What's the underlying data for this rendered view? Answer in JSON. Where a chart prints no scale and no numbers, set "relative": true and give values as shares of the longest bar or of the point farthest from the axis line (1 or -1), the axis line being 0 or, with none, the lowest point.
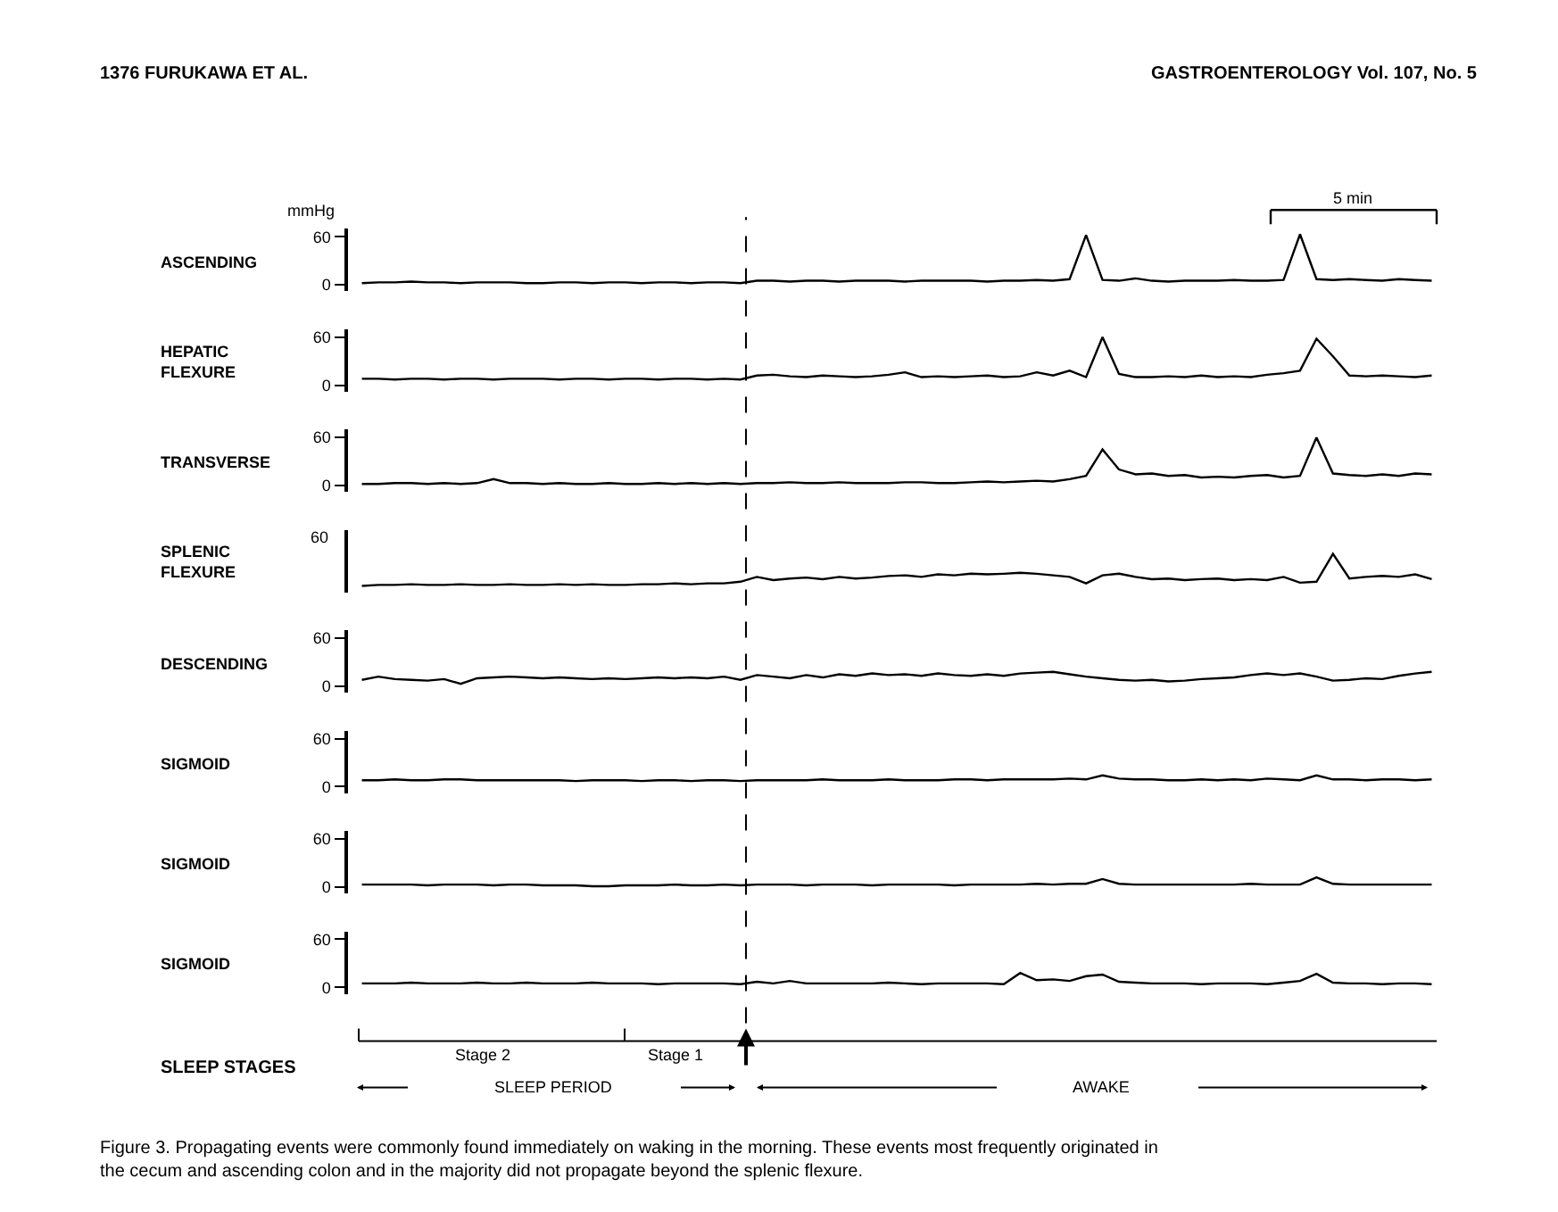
{
  "chart_data": [
    {
      "type": "line",
      "ylabel": "ASCENDING",
      "annotations": [
        "1376 FURUKAWA ET AL.",
        "GASTROENTEROLOGY Vol. 107, No. 5",
        "mmHg",
        "5 min"
      ],
      "ylim": [
        -8,
        70
      ],
      "yticks": [
        0,
        60
      ],
      "tick_labels": "y",
      "line_style": "solid",
      "categories": [
        null,
        null,
        null,
        null,
        null,
        null,
        null,
        null,
        null,
        null,
        null,
        null,
        null,
        null,
        null,
        null,
        null,
        null,
        null,
        null,
        null,
        null,
        null,
        null,
        null,
        null,
        null,
        null,
        null,
        null,
        null,
        null,
        null,
        null,
        null,
        null,
        null,
        null,
        null,
        null,
        null,
        null,
        null,
        null,
        null,
        null,
        null,
        null,
        null,
        null,
        null,
        null,
        null,
        null,
        null,
        null,
        null,
        null,
        null,
        null,
        null,
        null,
        null,
        null,
        null,
        null
      ],
      "series": [
        {
          "color": "#000000",
          "values": [
            2,
            3,
            3,
            4,
            3,
            3,
            2,
            3,
            3,
            3,
            2,
            2,
            3,
            3,
            2,
            3,
            3,
            2,
            3,
            3,
            2,
            3,
            3,
            2,
            5,
            5,
            4,
            5,
            5,
            4,
            5,
            5,
            5,
            4,
            5,
            5,
            5,
            5,
            4,
            5,
            5,
            6,
            5,
            7,
            62,
            6,
            5,
            8,
            5,
            4,
            5,
            5,
            5,
            6,
            5,
            5,
            6,
            63,
            7,
            6,
            7,
            6,
            5,
            7,
            6,
            5
          ]
        }
      ]
    },
    {
      "type": "line",
      "ylabel": "HEPATIC\nFLEXURE",
      "ylim": [
        -8,
        70
      ],
      "yticks": [
        0,
        60
      ],
      "tick_labels": "y",
      "line_style": "solid",
      "categories": [
        null,
        null,
        null,
        null,
        null,
        null,
        null,
        null,
        null,
        null,
        null,
        null,
        null,
        null,
        null,
        null,
        null,
        null,
        null,
        null,
        null,
        null,
        null,
        null,
        null,
        null,
        null,
        null,
        null,
        null,
        null,
        null,
        null,
        null,
        null,
        null,
        null,
        null,
        null,
        null,
        null,
        null,
        null,
        null,
        null,
        null,
        null,
        null,
        null,
        null,
        null,
        null,
        null,
        null,
        null,
        null,
        null,
        null,
        null,
        null,
        null,
        null,
        null,
        null,
        null,
        null
      ],
      "series": [
        {
          "color": "#000000",
          "values": [
            8,
            8,
            7,
            8,
            8,
            7,
            8,
            8,
            7,
            8,
            8,
            8,
            7,
            8,
            8,
            7,
            8,
            8,
            7,
            8,
            8,
            7,
            8,
            7,
            12,
            13,
            11,
            10,
            12,
            11,
            10,
            11,
            13,
            16,
            10,
            11,
            10,
            11,
            12,
            10,
            11,
            16,
            12,
            18,
            10,
            60,
            14,
            10,
            10,
            11,
            10,
            12,
            10,
            11,
            10,
            13,
            15,
            18,
            58,
            36,
            12,
            11,
            12,
            11,
            10,
            12
          ]
        }
      ]
    },
    {
      "type": "line",
      "ylabel": "TRANSVERSE",
      "ylim": [
        -8,
        70
      ],
      "yticks": [
        0,
        60
      ],
      "tick_labels": "y",
      "line_style": "solid",
      "categories": [
        null,
        null,
        null,
        null,
        null,
        null,
        null,
        null,
        null,
        null,
        null,
        null,
        null,
        null,
        null,
        null,
        null,
        null,
        null,
        null,
        null,
        null,
        null,
        null,
        null,
        null,
        null,
        null,
        null,
        null,
        null,
        null,
        null,
        null,
        null,
        null,
        null,
        null,
        null,
        null,
        null,
        null,
        null,
        null,
        null,
        null,
        null,
        null,
        null,
        null,
        null,
        null,
        null,
        null,
        null,
        null,
        null,
        null,
        null,
        null,
        null,
        null,
        null,
        null,
        null,
        null
      ],
      "series": [
        {
          "color": "#000000",
          "values": [
            2,
            2,
            3,
            3,
            2,
            3,
            2,
            3,
            8,
            3,
            3,
            2,
            3,
            2,
            2,
            3,
            2,
            2,
            3,
            2,
            3,
            2,
            3,
            2,
            3,
            3,
            4,
            3,
            3,
            4,
            3,
            3,
            3,
            4,
            4,
            3,
            3,
            4,
            5,
            4,
            5,
            6,
            5,
            8,
            12,
            45,
            20,
            14,
            15,
            12,
            13,
            10,
            11,
            10,
            12,
            13,
            10,
            12,
            60,
            15,
            13,
            12,
            14,
            12,
            15,
            14
          ]
        }
      ]
    },
    {
      "type": "line",
      "ylabel": "SPLENIC\nFLEXURE",
      "annotations": [
        "60"
      ],
      "relative": true,
      "tick_labels": "y",
      "line_style": "solid",
      "categories": [
        null,
        null,
        null,
        null,
        null,
        null,
        null,
        null,
        null,
        null,
        null,
        null,
        null,
        null,
        null,
        null,
        null,
        null,
        null,
        null,
        null,
        null,
        null,
        null,
        null,
        null,
        null,
        null,
        null,
        null,
        null,
        null,
        null,
        null,
        null,
        null,
        null,
        null,
        null,
        null,
        null,
        null,
        null,
        null,
        null,
        null,
        null,
        null,
        null,
        null,
        null,
        null,
        null,
        null,
        null,
        null,
        null,
        null,
        null,
        null,
        null,
        null,
        null,
        null,
        null,
        null
      ],
      "series": [
        {
          "color": "#000000",
          "values": [
            0,
            0.03,
            0.03,
            0.05,
            0.03,
            0.03,
            0.05,
            0.03,
            0.03,
            0.05,
            0.03,
            0.03,
            0.05,
            0.03,
            0.05,
            0.03,
            0.03,
            0.05,
            0.05,
            0.08,
            0.05,
            0.08,
            0.08,
            0.13,
            0.28,
            0.18,
            0.23,
            0.26,
            0.21,
            0.28,
            0.23,
            0.26,
            0.31,
            0.33,
            0.28,
            0.36,
            0.33,
            0.38,
            0.36,
            0.38,
            0.41,
            0.38,
            0.33,
            0.28,
            0.08,
            0.33,
            0.38,
            0.28,
            0.21,
            0.23,
            0.18,
            0.21,
            0.23,
            0.18,
            0.21,
            0.18,
            0.28,
            0.1,
            0.13,
            1,
            0.23,
            0.28,
            0.31,
            0.28,
            0.36,
            0.21
          ]
        }
      ]
    },
    {
      "type": "line",
      "ylabel": "DESCENDING",
      "ylim": [
        -8,
        70
      ],
      "yticks": [
        0,
        60
      ],
      "tick_labels": "y",
      "line_style": "solid",
      "categories": [
        null,
        null,
        null,
        null,
        null,
        null,
        null,
        null,
        null,
        null,
        null,
        null,
        null,
        null,
        null,
        null,
        null,
        null,
        null,
        null,
        null,
        null,
        null,
        null,
        null,
        null,
        null,
        null,
        null,
        null,
        null,
        null,
        null,
        null,
        null,
        null,
        null,
        null,
        null,
        null,
        null,
        null,
        null,
        null,
        null,
        null,
        null,
        null,
        null,
        null,
        null,
        null,
        null,
        null,
        null,
        null,
        null,
        null,
        null,
        null,
        null,
        null,
        null,
        null,
        null,
        null
      ],
      "series": [
        {
          "color": "#000000",
          "values": [
            8,
            12,
            9,
            8,
            7,
            9,
            3,
            10,
            11,
            12,
            11,
            10,
            11,
            10,
            9,
            10,
            9,
            10,
            11,
            10,
            11,
            10,
            12,
            8,
            14,
            12,
            10,
            14,
            11,
            15,
            13,
            16,
            14,
            15,
            13,
            16,
            14,
            13,
            15,
            13,
            16,
            17,
            18,
            15,
            12,
            10,
            8,
            7,
            8,
            6,
            7,
            9,
            10,
            11,
            14,
            16,
            14,
            16,
            12,
            7,
            8,
            10,
            9,
            13,
            16,
            18
          ]
        }
      ]
    },
    {
      "type": "line",
      "ylabel": "SIGMOID",
      "ylim": [
        -8,
        70
      ],
      "yticks": [
        0,
        60
      ],
      "tick_labels": "y",
      "line_style": "solid",
      "categories": [
        null,
        null,
        null,
        null,
        null,
        null,
        null,
        null,
        null,
        null,
        null,
        null,
        null,
        null,
        null,
        null,
        null,
        null,
        null,
        null,
        null,
        null,
        null,
        null,
        null,
        null,
        null,
        null,
        null,
        null,
        null,
        null,
        null,
        null,
        null,
        null,
        null,
        null,
        null,
        null,
        null,
        null,
        null,
        null,
        null,
        null,
        null,
        null,
        null,
        null,
        null,
        null,
        null,
        null,
        null,
        null,
        null,
        null,
        null,
        null,
        null,
        null,
        null,
        null,
        null,
        null
      ],
      "series": [
        {
          "color": "#000000",
          "values": [
            8,
            8,
            9,
            8,
            8,
            9,
            9,
            8,
            8,
            8,
            8,
            8,
            8,
            7,
            8,
            8,
            8,
            7,
            8,
            8,
            7,
            8,
            8,
            7,
            8,
            8,
            8,
            8,
            9,
            8,
            8,
            8,
            9,
            8,
            8,
            8,
            9,
            9,
            8,
            9,
            9,
            9,
            9,
            10,
            9,
            14,
            10,
            9,
            9,
            8,
            8,
            9,
            8,
            9,
            8,
            10,
            9,
            8,
            14,
            9,
            9,
            8,
            9,
            9,
            8,
            9
          ]
        }
      ]
    },
    {
      "type": "line",
      "ylabel": "SIGMOID",
      "ylim": [
        -8,
        70
      ],
      "yticks": [
        0,
        60
      ],
      "tick_labels": "y",
      "line_style": "solid",
      "categories": [
        null,
        null,
        null,
        null,
        null,
        null,
        null,
        null,
        null,
        null,
        null,
        null,
        null,
        null,
        null,
        null,
        null,
        null,
        null,
        null,
        null,
        null,
        null,
        null,
        null,
        null,
        null,
        null,
        null,
        null,
        null,
        null,
        null,
        null,
        null,
        null,
        null,
        null,
        null,
        null,
        null,
        null,
        null,
        null,
        null,
        null,
        null,
        null,
        null,
        null,
        null,
        null,
        null,
        null,
        null,
        null,
        null,
        null,
        null,
        null,
        null,
        null,
        null,
        null,
        null,
        null
      ],
      "series": [
        {
          "color": "#000000",
          "values": [
            3,
            3,
            3,
            3,
            2,
            3,
            3,
            3,
            2,
            3,
            3,
            2,
            2,
            2,
            1,
            1,
            2,
            2,
            2,
            3,
            2,
            2,
            3,
            2,
            3,
            3,
            3,
            2,
            3,
            3,
            3,
            2,
            3,
            3,
            3,
            3,
            2,
            3,
            3,
            3,
            3,
            4,
            3,
            4,
            4,
            10,
            4,
            3,
            3,
            3,
            3,
            3,
            3,
            3,
            4,
            3,
            3,
            3,
            12,
            4,
            3,
            3,
            3,
            3,
            3,
            3
          ]
        }
      ]
    },
    {
      "type": "line",
      "ylabel": "SIGMOID",
      "ylim": [
        -8,
        70
      ],
      "yticks": [
        0,
        60
      ],
      "tick_labels": "y",
      "line_style": "solid",
      "categories": [
        null,
        null,
        null,
        null,
        null,
        null,
        null,
        null,
        null,
        null,
        null,
        null,
        null,
        null,
        null,
        null,
        null,
        null,
        null,
        null,
        null,
        null,
        null,
        null,
        null,
        null,
        null,
        null,
        null,
        null,
        null,
        null,
        null,
        null,
        null,
        null,
        null,
        null,
        null,
        null,
        null,
        null,
        null,
        null,
        null,
        null,
        null,
        null,
        null,
        null,
        null,
        null,
        null,
        null,
        null,
        null,
        null,
        null,
        null,
        null,
        null,
        null,
        null,
        null,
        null,
        null
      ],
      "series": [
        {
          "color": "#000000",
          "values": [
            5,
            5,
            5,
            6,
            5,
            5,
            5,
            6,
            5,
            5,
            6,
            5,
            5,
            5,
            6,
            5,
            5,
            5,
            4,
            5,
            5,
            5,
            5,
            4,
            7,
            5,
            8,
            5,
            5,
            5,
            5,
            5,
            6,
            5,
            4,
            5,
            5,
            5,
            5,
            4,
            18,
            9,
            10,
            8,
            14,
            16,
            7,
            6,
            5,
            5,
            5,
            4,
            5,
            5,
            5,
            4,
            6,
            8,
            17,
            6,
            5,
            5,
            4,
            5,
            5,
            4
          ]
        }
      ]
    },
    {
      "type": "other",
      "annotations": [
        "SLEEP STAGES",
        "Stage 2",
        "Stage 1",
        "SLEEP PERIOD",
        "AWAKE",
        "Figure 3. Propagating events were commonly found immediately on waking in the morning. These events most frequently originated in the cecum and ascending colon and in the majority did not propagate beyond the splenic flexure."
      ]
    }
  ]
}
